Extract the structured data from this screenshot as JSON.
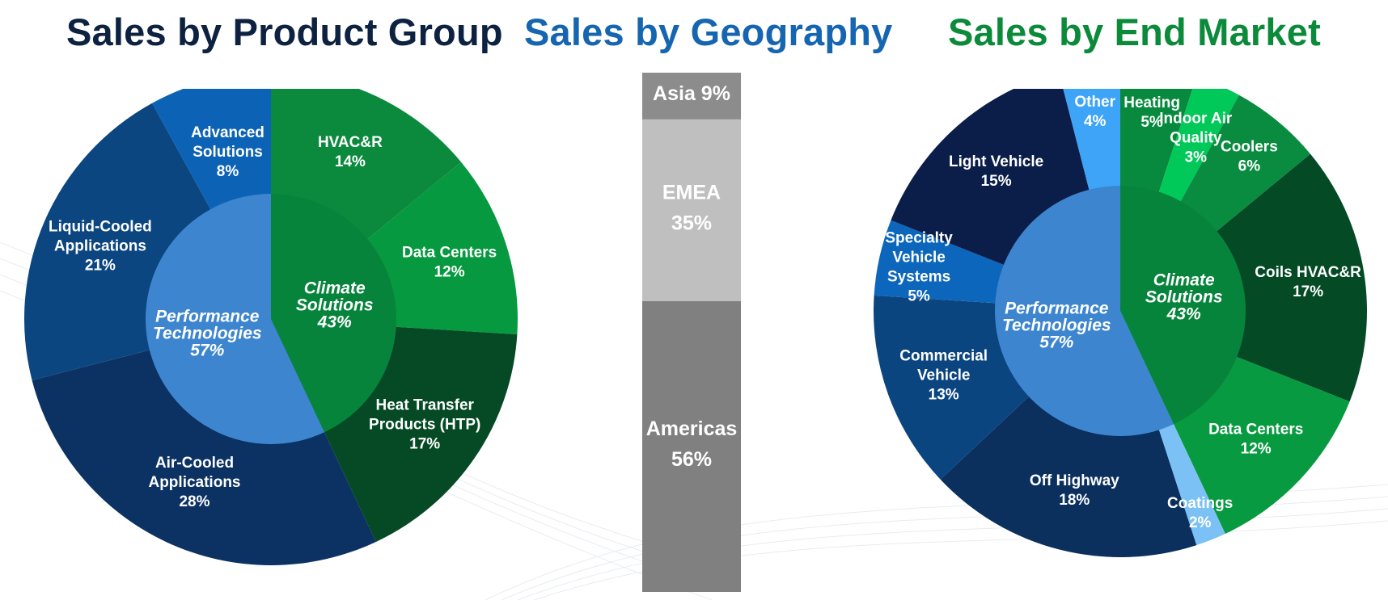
{
  "chart_data": [
    {
      "type": "pie",
      "title": "Sales by Product Group",
      "inner": [
        {
          "lines": [
            "Climate",
            "Solutions",
            "43%"
          ],
          "value": 43,
          "color": "#07843c"
        },
        {
          "lines": [
            "Performance",
            "Technologies",
            "57%"
          ],
          "value": 57,
          "color": "#3d86cf"
        }
      ],
      "slices": [
        {
          "lines": [
            "HVAC&R",
            "14%"
          ],
          "value": 14,
          "color": "#0b8a3e"
        },
        {
          "lines": [
            "Data Centers",
            "12%"
          ],
          "value": 12,
          "color": "#06993f"
        },
        {
          "lines": [
            "Heat Transfer",
            "Products (HTP)",
            "17%"
          ],
          "value": 17,
          "color": "#054a25"
        },
        {
          "lines": [
            "Air-Cooled",
            "Applications",
            "28%"
          ],
          "value": 28,
          "color": "#0b3263"
        },
        {
          "lines": [
            "Liquid-Cooled",
            "Applications",
            "21%"
          ],
          "value": 21,
          "color": "#0b4681"
        },
        {
          "lines": [
            "Advanced",
            "Solutions",
            "8%"
          ],
          "value": 8,
          "color": "#0c63b5"
        }
      ]
    },
    {
      "type": "bar",
      "title": "Sales by Geography",
      "segments": [
        {
          "lines": [
            "Asia 9%"
          ],
          "value": 9,
          "color": "#8c8c8c"
        },
        {
          "lines": [
            "EMEA",
            "35%"
          ],
          "value": 35,
          "color": "#bfbfbf"
        },
        {
          "lines": [
            "Americas",
            "56%"
          ],
          "value": 56,
          "color": "#808080"
        }
      ]
    },
    {
      "type": "pie",
      "title": "Sales by End Market",
      "inner": [
        {
          "lines": [
            "Climate",
            "Solutions",
            "43%"
          ],
          "value": 43,
          "color": "#07843c"
        },
        {
          "lines": [
            "Performance",
            "Technologies",
            "57%"
          ],
          "value": 57,
          "color": "#3d86cf"
        }
      ],
      "slices": [
        {
          "lines": [
            "Heating",
            "5%"
          ],
          "value": 5,
          "color": "#078a3e"
        },
        {
          "lines": [
            "Indoor Air",
            "Quality",
            "3%"
          ],
          "value": 3,
          "color": "#00c859"
        },
        {
          "lines": [
            "Coolers",
            "6%"
          ],
          "value": 6,
          "color": "#0a8c40"
        },
        {
          "lines": [
            "Coils HVAC&R",
            "17%"
          ],
          "value": 17,
          "color": "#044a25"
        },
        {
          "lines": [
            "Data Centers",
            "12%"
          ],
          "value": 12,
          "color": "#089a40"
        },
        {
          "lines": [
            "Coatings",
            "2%"
          ],
          "value": 2,
          "color": "#7cc1f6"
        },
        {
          "lines": [
            "Off Highway",
            "18%"
          ],
          "value": 18,
          "color": "#0b305e"
        },
        {
          "lines": [
            "Commercial",
            "Vehicle",
            "13%"
          ],
          "value": 13,
          "color": "#0b4580"
        },
        {
          "lines": [
            "Specialty",
            "Vehicle",
            "Systems",
            "5%"
          ],
          "value": 5,
          "color": "#0c66bb"
        },
        {
          "lines": [
            "Light Vehicle",
            "15%"
          ],
          "value": 15,
          "color": "#0b1e49"
        },
        {
          "lines": [
            "Other",
            "4%"
          ],
          "value": 4,
          "color": "#3ea4f7"
        }
      ]
    }
  ]
}
